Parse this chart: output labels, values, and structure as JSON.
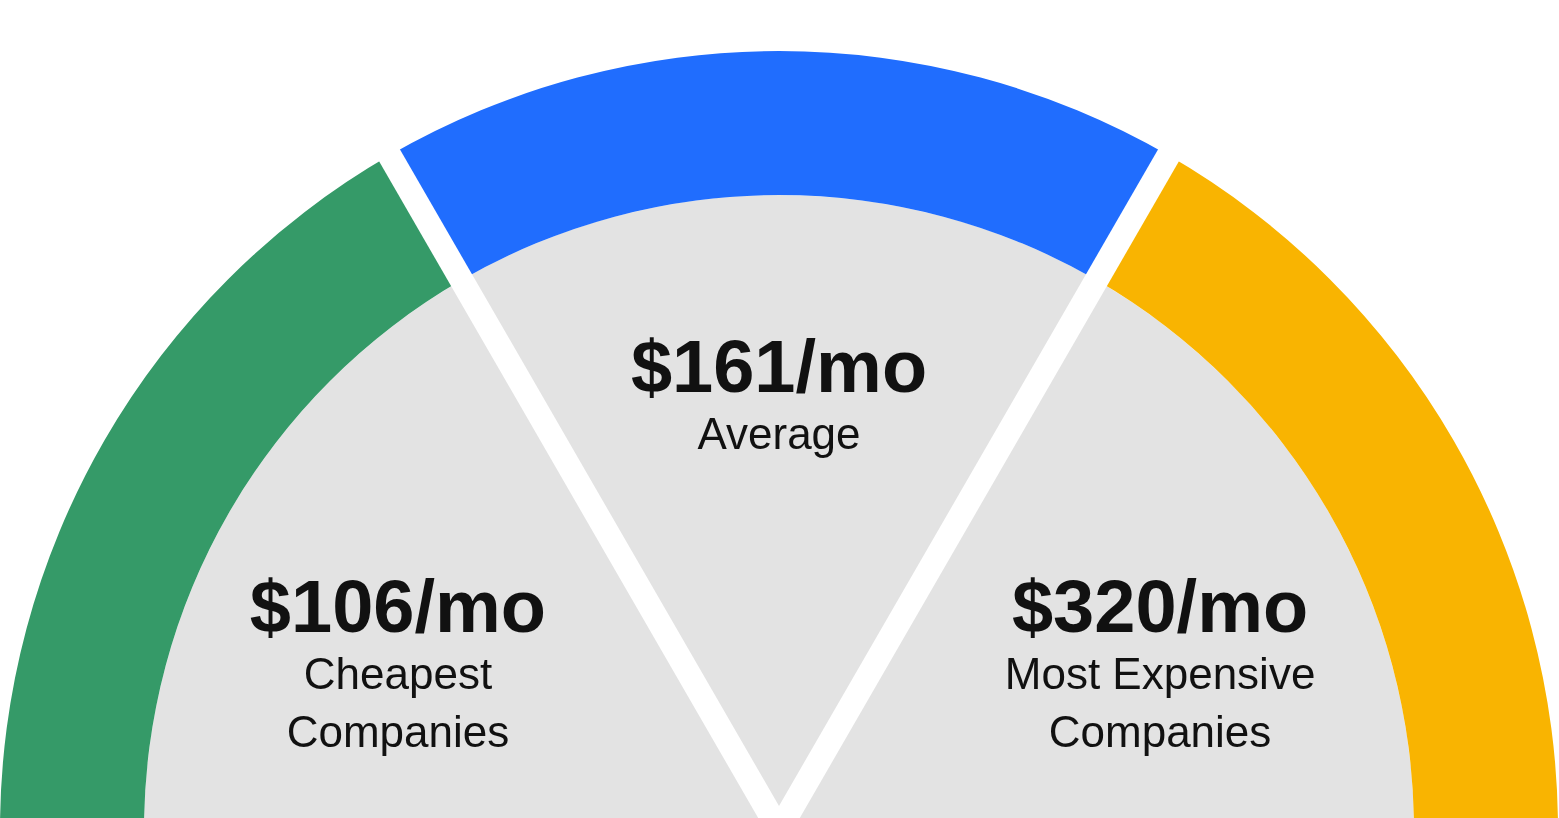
{
  "chart_data": {
    "type": "other",
    "categories": [
      "Cheapest\nCompanies",
      "Average",
      "Most Expensive\nCompanies"
    ],
    "values": [
      106,
      161,
      320
    ],
    "value_labels": [
      "$106/mo",
      "$161/mo",
      "$320/mo"
    ],
    "colors": [
      "#359a68",
      "#206dfe",
      "#f9b401"
    ]
  }
}
